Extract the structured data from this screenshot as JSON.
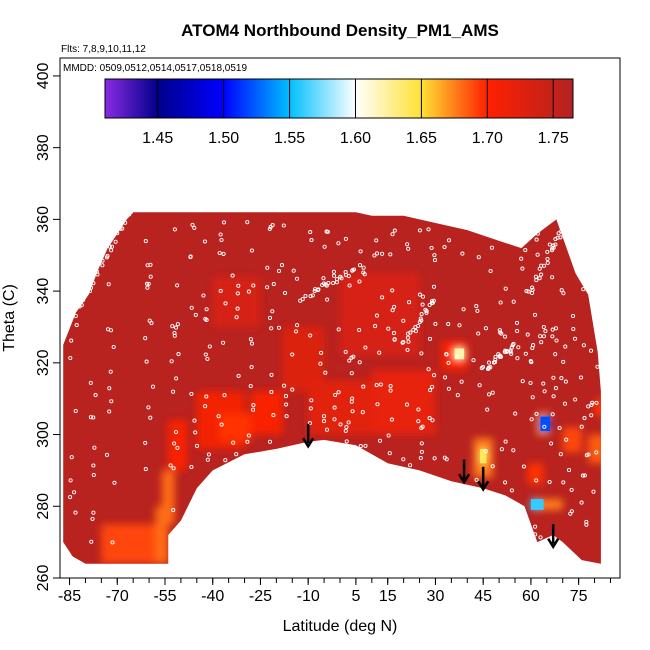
{
  "chart_data": {
    "type": "heatmap",
    "title": "ATOM4 Northbound Density_PM1_AMS",
    "flights_label": "Flts: 7,8,9,10,11,12",
    "mmdd_label": "MMDD: 0509,0512,0514,0517,0518,0519",
    "xlabel": "Latitude (deg N)",
    "ylabel": "Theta (C)",
    "xlim": [
      -88,
      88
    ],
    "ylim": [
      260,
      405
    ],
    "x_ticks": [
      -85,
      -70,
      -55,
      -40,
      -25,
      -10,
      5,
      15,
      30,
      45,
      60,
      75
    ],
    "x_tick_labels": [
      "-85",
      "-70",
      "-55",
      "-40",
      "-25",
      "-10",
      "5",
      "15",
      "30",
      "45",
      "60",
      "75"
    ],
    "y_ticks": [
      260,
      280,
      300,
      320,
      340,
      360,
      380,
      400
    ],
    "y_tick_labels": [
      "260",
      "280",
      "300",
      "320",
      "340",
      "360",
      "380",
      "400"
    ],
    "colorbar": {
      "range": [
        1.41,
        1.765
      ],
      "ticks": [
        1.45,
        1.5,
        1.55,
        1.6,
        1.65,
        1.7,
        1.75
      ],
      "tick_labels": [
        "1.45",
        "1.50",
        "1.55",
        "1.60",
        "1.65",
        "1.70",
        "1.75"
      ],
      "stops": [
        {
          "v": 1.41,
          "c": "#8a2be2"
        },
        {
          "v": 1.45,
          "c": "#00008b"
        },
        {
          "v": 1.5,
          "c": "#0000ff"
        },
        {
          "v": 1.55,
          "c": "#00bfff"
        },
        {
          "v": 1.6,
          "c": "#ffffff"
        },
        {
          "v": 1.65,
          "c": "#ffe135"
        },
        {
          "v": 1.7,
          "c": "#ff2000"
        },
        {
          "v": 1.765,
          "c": "#b22222"
        }
      ]
    },
    "domain_top": [
      [
        -87,
        325
      ],
      [
        -83,
        334
      ],
      [
        -79,
        339
      ],
      [
        -76,
        346
      ],
      [
        -73,
        352
      ],
      [
        -70,
        356
      ],
      [
        -67,
        360
      ],
      [
        -65,
        362
      ],
      [
        -10,
        362
      ],
      [
        5,
        362
      ],
      [
        10,
        361
      ],
      [
        20,
        361
      ],
      [
        30,
        359
      ],
      [
        40,
        357
      ],
      [
        50,
        354
      ],
      [
        57,
        352
      ],
      [
        62,
        356
      ],
      [
        68,
        360
      ],
      [
        74,
        345
      ],
      [
        78,
        339
      ],
      [
        81,
        323
      ],
      [
        82,
        312
      ]
    ],
    "domain_bottom": [
      [
        82,
        264
      ],
      [
        76,
        265
      ],
      [
        70,
        270
      ],
      [
        67,
        272
      ],
      [
        62,
        270
      ],
      [
        58,
        280
      ],
      [
        52,
        283
      ],
      [
        45,
        285
      ],
      [
        35,
        287
      ],
      [
        25,
        290
      ],
      [
        15,
        292
      ],
      [
        5,
        297
      ],
      [
        -5,
        298.5
      ],
      [
        -10,
        298
      ],
      [
        -20,
        296
      ],
      [
        -30,
        294.5
      ],
      [
        -40,
        290
      ],
      [
        -45,
        285
      ],
      [
        -50,
        276
      ],
      [
        -54,
        272
      ],
      [
        -54,
        264
      ],
      [
        -80,
        264
      ],
      [
        -84,
        266
      ],
      [
        -87,
        270
      ]
    ],
    "base_value": 1.76,
    "patches": [
      {
        "x": [
          -75,
          -54
        ],
        "y": [
          264,
          275
        ],
        "v": 1.69
      },
      {
        "x": [
          -58,
          -54
        ],
        "y": [
          264,
          280
        ],
        "v": 1.68
      },
      {
        "x": [
          -56,
          -52
        ],
        "y": [
          275,
          290
        ],
        "v": 1.68
      },
      {
        "x": [
          -54,
          -48
        ],
        "y": [
          290,
          304
        ],
        "v": 1.705
      },
      {
        "x": [
          -45,
          -30
        ],
        "y": [
          296,
          312
        ],
        "v": 1.71
      },
      {
        "x": [
          -38,
          -28
        ],
        "y": [
          298,
          306
        ],
        "v": 1.695
      },
      {
        "x": [
          -28,
          -18
        ],
        "y": [
          300,
          312
        ],
        "v": 1.705
      },
      {
        "x": [
          -40,
          -25
        ],
        "y": [
          330,
          344
        ],
        "v": 1.735
      },
      {
        "x": [
          -18,
          -5
        ],
        "y": [
          312,
          330
        ],
        "v": 1.73
      },
      {
        "x": [
          0,
          25
        ],
        "y": [
          322,
          345
        ],
        "v": 1.735
      },
      {
        "x": [
          -10,
          10
        ],
        "y": [
          300,
          315
        ],
        "v": 1.725
      },
      {
        "x": [
          10,
          30
        ],
        "y": [
          300,
          318
        ],
        "v": 1.72
      },
      {
        "x": [
          32,
          40
        ],
        "y": [
          318,
          326
        ],
        "v": 1.7
      },
      {
        "x": [
          36,
          39
        ],
        "y": [
          321,
          324
        ],
        "v": 1.62
      },
      {
        "x": [
          42,
          48
        ],
        "y": [
          288,
          299
        ],
        "v": 1.675
      },
      {
        "x": [
          44,
          46
        ],
        "y": [
          292,
          296
        ],
        "v": 1.64
      },
      {
        "x": [
          59,
          64
        ],
        "y": [
          286,
          292
        ],
        "v": 1.695
      },
      {
        "x": [
          62,
          66
        ],
        "y": [
          300,
          306
        ],
        "v": 1.665
      },
      {
        "x": [
          63,
          66
        ],
        "y": [
          301,
          305
        ],
        "v": 1.52
      },
      {
        "x": [
          60,
          64
        ],
        "y": [
          279,
          282
        ],
        "v": 1.56
      },
      {
        "x": [
          62,
          70
        ],
        "y": [
          279,
          282
        ],
        "v": 1.675
      },
      {
        "x": [
          70,
          76
        ],
        "y": [
          295,
          302
        ],
        "v": 1.69
      },
      {
        "x": [
          78,
          84
        ],
        "y": [
          292,
          300
        ],
        "v": 1.685
      },
      {
        "x": [
          80,
          86
        ],
        "y": [
          305,
          310
        ],
        "v": 1.695
      }
    ],
    "arrows": [
      {
        "x": -10,
        "y_top": 303,
        "y_bottom": 297
      },
      {
        "x": 39,
        "y_top": 293,
        "y_bottom": 287
      },
      {
        "x": 45,
        "y_top": 291,
        "y_bottom": 285
      },
      {
        "x": 67,
        "y_top": 275,
        "y_bottom": 269
      }
    ],
    "sample_tracks": [
      {
        "x": [
          -82,
          -66
        ],
        "y": [
          335,
          362
        ]
      },
      {
        "x": [
          -12,
          5
        ],
        "y": [
          338,
          346
        ]
      },
      {
        "x": [
          20,
          30
        ],
        "y": [
          325,
          338
        ]
      },
      {
        "x": [
          60,
          70
        ],
        "y": [
          340,
          358
        ]
      },
      {
        "x": [
          45,
          55
        ],
        "y": [
          318,
          325
        ]
      }
    ]
  }
}
